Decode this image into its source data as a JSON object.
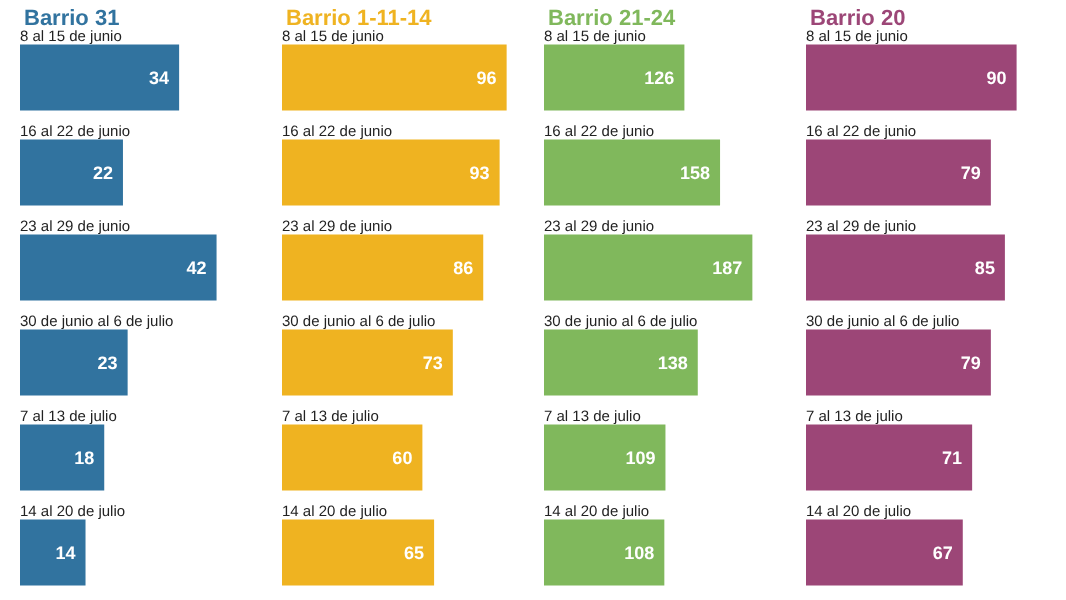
{
  "chart_data": [
    {
      "type": "bar",
      "orientation": "horizontal",
      "title": "Barrio 31",
      "categories": [
        "8 al 15 de junio",
        "16 al 22 de junio",
        "23 al 29 de junio",
        "30 de junio al 6 de julio",
        "7 al 13 de julio",
        "14 al 20 de julio"
      ],
      "values": [
        34,
        22,
        42,
        23,
        18,
        14
      ],
      "color": "#31739f",
      "tick_labels": "y",
      "data_labels": true
    },
    {
      "type": "bar",
      "orientation": "horizontal",
      "title": "Barrio 1-11-14",
      "categories": [
        "8 al 15 de junio",
        "16 al 22 de junio",
        "23 al 29 de junio",
        "30 de junio al 6 de julio",
        "7 al 13 de julio",
        "14 al 20 de julio"
      ],
      "values": [
        96,
        93,
        86,
        73,
        60,
        65
      ],
      "color": "#efb321",
      "tick_labels": "y",
      "data_labels": true
    },
    {
      "type": "bar",
      "orientation": "horizontal",
      "title": "Barrio 21-24",
      "categories": [
        "8 al 15 de junio",
        "16 al 22 de junio",
        "23 al 29 de junio",
        "30 de junio al 6 de julio",
        "7 al 13 de julio",
        "14 al 20 de julio"
      ],
      "values": [
        126,
        158,
        187,
        138,
        109,
        108
      ],
      "color": "#80b85c",
      "tick_labels": "y",
      "data_labels": true
    },
    {
      "type": "bar",
      "orientation": "horizontal",
      "title": "Barrio 20",
      "categories": [
        "8 al 15 de junio",
        "16 al 22 de junio",
        "23 al 29 de junio",
        "30 de junio al 6 de julio",
        "7 al 13 de julio",
        "14 al 20 de julio"
      ],
      "values": [
        90,
        79,
        85,
        79,
        71,
        67
      ],
      "color": "#9c4677",
      "tick_labels": "y",
      "data_labels": true
    }
  ]
}
